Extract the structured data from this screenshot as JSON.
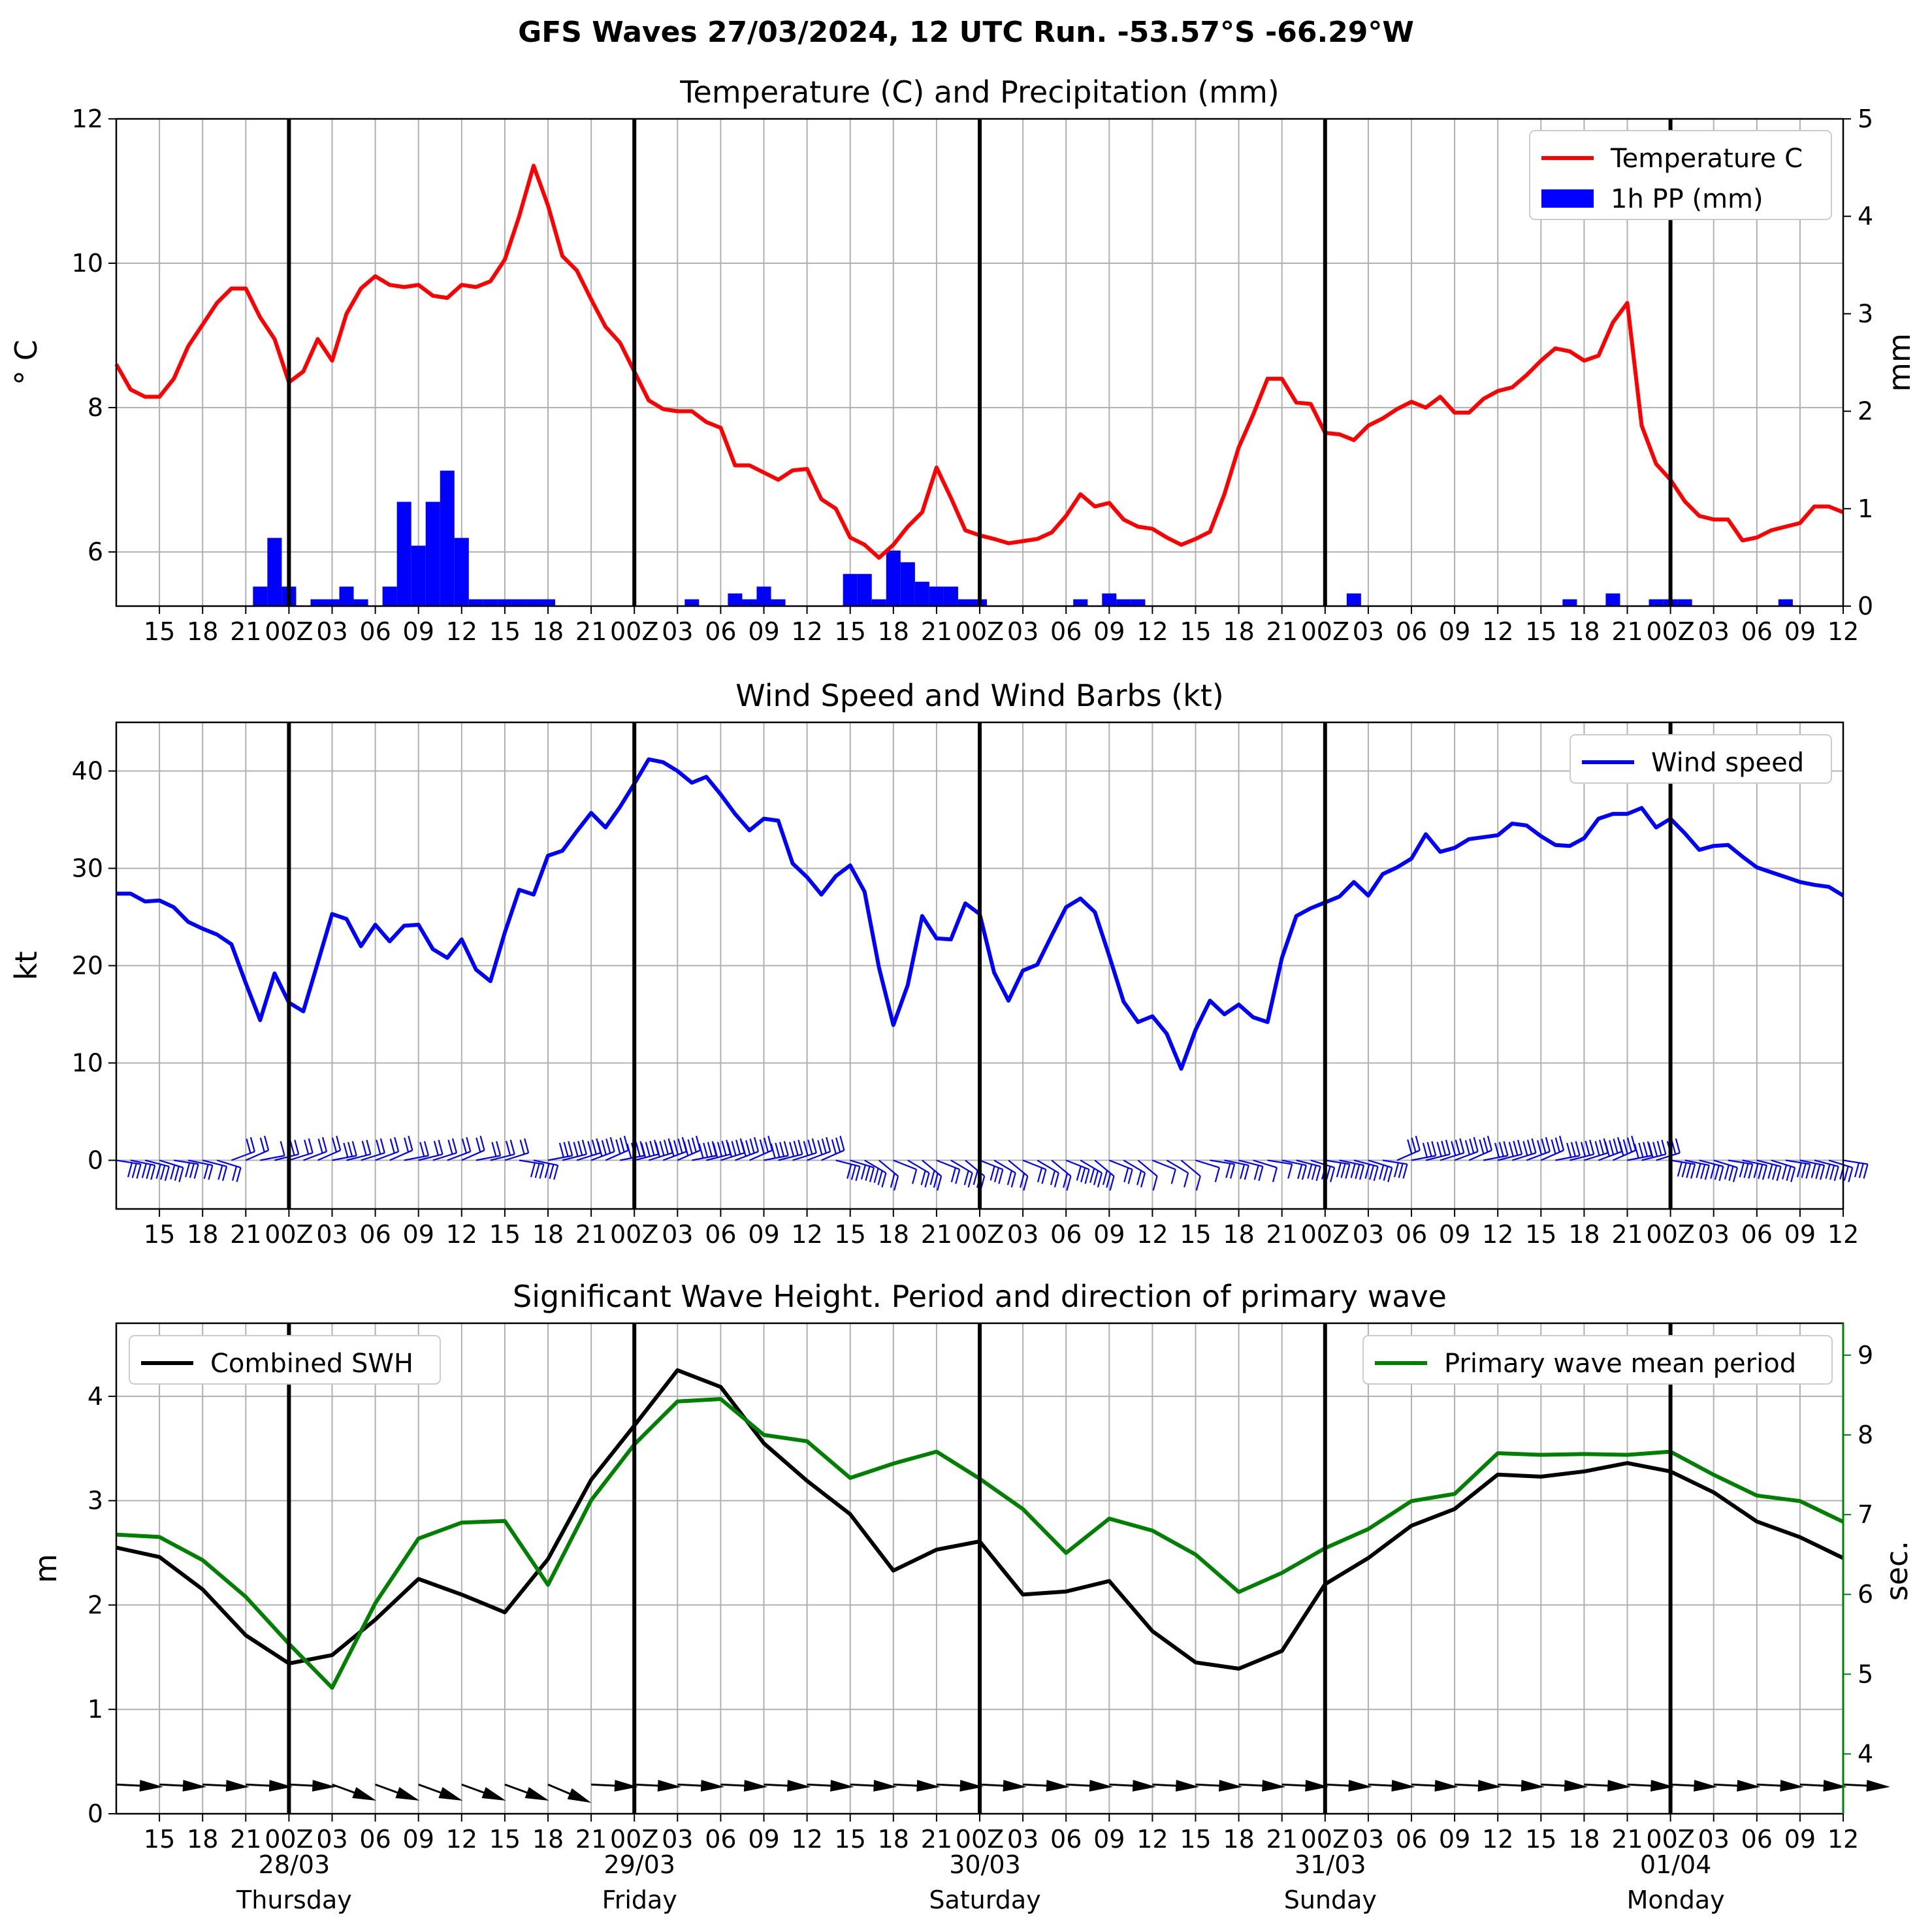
{
  "suptitle": "GFS Waves 27/03/2024, 12 UTC Run. -53.57°S -66.29°W",
  "colors": {
    "temperature": "#ff0000",
    "precip": "#0000ff",
    "wind": "#0000ff",
    "swh": "#000000",
    "period": "#008000",
    "grid": "#b0b0b0",
    "daylines": "#000000"
  },
  "x_tick_labels": [
    "15",
    "18",
    "21",
    "00Z",
    "03",
    "06",
    "09",
    "12",
    "15",
    "18",
    "21",
    "00Z",
    "03",
    "06",
    "09",
    "12",
    "15",
    "18",
    "21",
    "00Z",
    "03",
    "06",
    "09",
    "12",
    "15",
    "18",
    "21",
    "00Z",
    "03",
    "06",
    "09",
    "12",
    "15",
    "18",
    "21",
    "00Z",
    "03",
    "06",
    "09",
    "12"
  ],
  "date_labels": [
    {
      "date": "28/03",
      "day": "Thursday"
    },
    {
      "date": "29/03",
      "day": "Friday"
    },
    {
      "date": "30/03",
      "day": "Saturday"
    },
    {
      "date": "31/03",
      "day": "Sunday"
    },
    {
      "date": "01/04",
      "day": "Monday"
    }
  ],
  "chart_data": [
    {
      "type": "line",
      "title": "Temperature (C) and Precipitation (mm)",
      "ylabel": "° C",
      "ylabel_right": "mm",
      "x_unit": "hours since 27/03/2024 12 UTC",
      "ylim": [
        5.25,
        12.0
      ],
      "yticks": [
        6,
        8,
        10,
        12
      ],
      "ylim_right": [
        0,
        5
      ],
      "yticks_right": [
        0,
        1,
        2,
        3,
        4,
        5
      ],
      "grid": true,
      "legend_position": "top-right",
      "series": [
        {
          "name": "Temperature C",
          "type": "line",
          "x": [
            0,
            1,
            2,
            3,
            4,
            5,
            6,
            7,
            8,
            9,
            10,
            11,
            12,
            13,
            14,
            15,
            16,
            17,
            18,
            19,
            20,
            21,
            22,
            23,
            24,
            25,
            26,
            27,
            28,
            29,
            30,
            31,
            32,
            33,
            34,
            35,
            36,
            37,
            38,
            39,
            40,
            41,
            42,
            43,
            44,
            45,
            46,
            47,
            48,
            49,
            50,
            51,
            52,
            53,
            54,
            55,
            56,
            57,
            58,
            59,
            60,
            61,
            62,
            63,
            64,
            65,
            66,
            67,
            68,
            69,
            70,
            71,
            72,
            73,
            74,
            75,
            76,
            77,
            78,
            79,
            80,
            81,
            82,
            83,
            84,
            85,
            86,
            87,
            88,
            89,
            90,
            91,
            92,
            93,
            94,
            95,
            96,
            97,
            98,
            99,
            100,
            101,
            102,
            103,
            104,
            105,
            106,
            107,
            108,
            109,
            110,
            111,
            112,
            113,
            114,
            115,
            116,
            117,
            118,
            119,
            120
          ],
          "values": [
            8.6,
            8.25,
            8.15,
            8.15,
            8.4,
            8.85,
            9.15,
            9.45,
            9.65,
            9.65,
            9.25,
            8.95,
            8.35,
            8.5,
            8.95,
            8.65,
            9.3,
            9.65,
            9.82,
            9.7,
            9.67,
            9.7,
            9.55,
            9.52,
            9.7,
            9.67,
            9.75,
            10.05,
            10.65,
            11.35,
            10.8,
            10.1,
            9.9,
            9.5,
            9.12,
            8.9,
            8.5,
            8.1,
            7.98,
            7.95,
            7.95,
            7.8,
            7.72,
            7.2,
            7.2,
            7.1,
            7.0,
            7.13,
            7.15,
            6.73,
            6.6,
            6.2,
            6.1,
            5.92,
            6.1,
            6.35,
            6.55,
            7.17,
            6.75,
            6.3,
            6.23,
            6.18,
            6.12,
            6.15,
            6.18,
            6.27,
            6.5,
            6.8,
            6.63,
            6.68,
            6.45,
            6.35,
            6.32,
            6.2,
            6.1,
            6.18,
            6.28,
            6.8,
            7.45,
            7.9,
            8.4,
            8.4,
            8.07,
            8.05,
            7.65,
            7.63,
            7.55,
            7.75,
            7.85,
            7.98,
            8.08,
            8.0,
            8.15,
            7.93,
            7.93,
            8.12,
            8.23,
            8.28,
            8.45,
            8.65,
            8.82,
            8.78,
            8.65,
            8.72,
            9.18,
            9.45,
            7.75,
            7.22,
            7.0,
            6.7,
            6.5,
            6.45,
            6.45,
            6.16,
            6.2,
            6.3,
            6.35,
            6.4,
            6.63,
            6.63,
            6.55
          ]
        },
        {
          "name": "1h PP (mm)",
          "type": "bar",
          "axis": "right",
          "x": [
            10,
            11,
            12,
            14,
            15,
            16,
            17,
            19,
            20,
            21,
            22,
            23,
            24,
            25,
            26,
            27,
            28,
            29,
            30,
            40,
            43,
            44,
            45,
            46,
            51,
            52,
            53,
            54,
            55,
            56,
            57,
            58,
            59,
            60,
            67,
            69,
            70,
            71,
            86,
            101,
            104,
            107,
            108,
            109,
            116
          ],
          "values": [
            0.2,
            0.7,
            0.2,
            0.07,
            0.07,
            0.2,
            0.07,
            0.2,
            1.07,
            0.62,
            1.07,
            1.39,
            0.7,
            0.07,
            0.07,
            0.07,
            0.07,
            0.07,
            0.07,
            0.07,
            0.13,
            0.07,
            0.2,
            0.07,
            0.33,
            0.33,
            0.07,
            0.57,
            0.45,
            0.25,
            0.2,
            0.2,
            0.07,
            0.07,
            0.07,
            0.13,
            0.07,
            0.07,
            0.13,
            0.07,
            0.13,
            0.07,
            0.07,
            0.07,
            0.07
          ]
        }
      ]
    },
    {
      "type": "line",
      "title": "Wind Speed and Wind Barbs (kt)",
      "ylabel": "kt",
      "x_unit": "hours since 27/03/2024 12 UTC",
      "ylim": [
        -5,
        45
      ],
      "yticks": [
        0,
        10,
        20,
        30,
        40
      ],
      "grid": true,
      "legend_position": "top-right",
      "series": [
        {
          "name": "Wind speed",
          "x": [
            0,
            1,
            2,
            3,
            4,
            5,
            6,
            7,
            8,
            9,
            10,
            11,
            12,
            13,
            14,
            15,
            16,
            17,
            18,
            19,
            20,
            21,
            22,
            23,
            24,
            25,
            26,
            27,
            28,
            29,
            30,
            31,
            32,
            33,
            34,
            35,
            36,
            37,
            38,
            39,
            40,
            41,
            42,
            43,
            44,
            45,
            46,
            47,
            48,
            49,
            50,
            51,
            52,
            53,
            54,
            55,
            56,
            57,
            58,
            59,
            60,
            61,
            62,
            63,
            64,
            65,
            66,
            67,
            68,
            69,
            70,
            71,
            72,
            73,
            74,
            75,
            76,
            77,
            78,
            79,
            80,
            81,
            82,
            83,
            84,
            85,
            86,
            87,
            88,
            89,
            90,
            91,
            92,
            93,
            94,
            95,
            96,
            97,
            98,
            99,
            100,
            101,
            102,
            103,
            104,
            105,
            106,
            107,
            108,
            109,
            110,
            111,
            112,
            113,
            114,
            115,
            116,
            117,
            118,
            119,
            120
          ],
          "values": [
            27.4,
            27.4,
            26.6,
            26.7,
            26.0,
            24.5,
            23.8,
            23.2,
            22.2,
            18.2,
            14.4,
            19.2,
            16.2,
            15.3,
            20.3,
            25.3,
            24.8,
            22.0,
            24.2,
            22.5,
            24.1,
            24.2,
            21.7,
            20.8,
            22.7,
            19.6,
            18.4,
            23.4,
            27.8,
            27.3,
            31.3,
            31.8,
            33.8,
            35.7,
            34.2,
            36.3,
            38.7,
            41.2,
            40.9,
            40.0,
            38.8,
            39.4,
            37.6,
            35.6,
            33.9,
            35.1,
            34.9,
            30.5,
            29.1,
            27.3,
            29.2,
            30.3,
            27.6,
            19.8,
            13.9,
            18.0,
            25.1,
            22.8,
            22.7,
            26.4,
            25.3,
            19.3,
            16.4,
            19.5,
            20.1,
            23.1,
            26.0,
            26.9,
            25.5,
            21.0,
            16.3,
            14.2,
            14.8,
            13.0,
            9.4,
            13.4,
            16.4,
            15.0,
            16.0,
            14.7,
            14.2,
            20.8,
            25.1,
            25.9,
            26.5,
            27.1,
            28.6,
            27.2,
            29.4,
            30.1,
            31.0,
            33.5,
            31.7,
            32.1,
            33.0,
            33.2,
            33.4,
            34.6,
            34.4,
            33.3,
            32.4,
            32.3,
            33.1,
            35.1,
            35.6,
            35.6,
            36.2,
            34.2,
            35.1,
            33.6,
            31.9,
            32.3,
            32.4,
            31.2,
            30.1,
            29.6,
            29.1,
            28.6,
            28.3,
            28.1,
            27.2
          ]
        }
      ],
      "wind_barbs": {
        "note": "wind barb glyphs along y=0, one per hour"
      }
    },
    {
      "type": "line",
      "title": "Significant Wave Height. Period and direction of primary wave",
      "ylabel": "m",
      "ylabel_right": "sec.",
      "x_unit": "hours since 27/03/2024 12 UTC",
      "ylim": [
        0,
        4.7
      ],
      "yticks": [
        0,
        1,
        2,
        3,
        4
      ],
      "ylim_right": [
        3.25,
        9.4
      ],
      "yticks_right": [
        4,
        5,
        6,
        7,
        8,
        9
      ],
      "grid": true,
      "series": [
        {
          "name": "Combined SWH",
          "legend_position": "top-left",
          "x": [
            0,
            3,
            6,
            9,
            12,
            15,
            18,
            21,
            24,
            27,
            30,
            33,
            36,
            39,
            42,
            45,
            48,
            51,
            54,
            57,
            60,
            63,
            66,
            69,
            72,
            75,
            78,
            81,
            84,
            87,
            90,
            93,
            96,
            99,
            102,
            105,
            108,
            111,
            114,
            117,
            120
          ],
          "values": [
            2.55,
            2.46,
            2.15,
            1.71,
            1.44,
            1.52,
            1.86,
            2.25,
            2.1,
            1.93,
            2.44,
            3.2,
            3.72,
            4.25,
            4.09,
            3.55,
            3.19,
            2.87,
            2.33,
            2.53,
            2.61,
            2.1,
            2.13,
            2.23,
            1.75,
            1.45,
            1.39,
            1.56,
            2.2,
            2.45,
            2.76,
            2.92,
            3.25,
            3.23,
            3.28,
            3.36,
            3.28,
            3.08,
            2.8,
            2.65,
            2.45
          ]
        },
        {
          "name": "Primary wave mean period",
          "axis": "right",
          "legend_position": "top-right",
          "x": [
            0,
            3,
            6,
            9,
            12,
            15,
            18,
            21,
            24,
            27,
            30,
            33,
            36,
            39,
            42,
            45,
            48,
            51,
            54,
            57,
            60,
            63,
            66,
            69,
            72,
            75,
            78,
            81,
            84,
            87,
            90,
            93,
            96,
            99,
            102,
            105,
            108,
            111,
            114,
            117,
            120
          ],
          "values": [
            6.75,
            6.72,
            6.43,
            5.97,
            5.38,
            4.83,
            5.89,
            6.7,
            6.9,
            6.92,
            6.12,
            7.18,
            7.88,
            8.42,
            8.45,
            8.0,
            7.92,
            7.46,
            7.64,
            7.79,
            7.45,
            7.07,
            6.52,
            6.95,
            6.8,
            6.5,
            6.03,
            6.27,
            6.58,
            6.82,
            7.17,
            7.26,
            7.77,
            7.75,
            7.76,
            7.75,
            7.79,
            7.5,
            7.24,
            7.17,
            6.91
          ]
        }
      ],
      "wave_direction_arrows": {
        "note": "primary wave direction arrows along y≈0.28 m, every 3 h"
      }
    }
  ]
}
